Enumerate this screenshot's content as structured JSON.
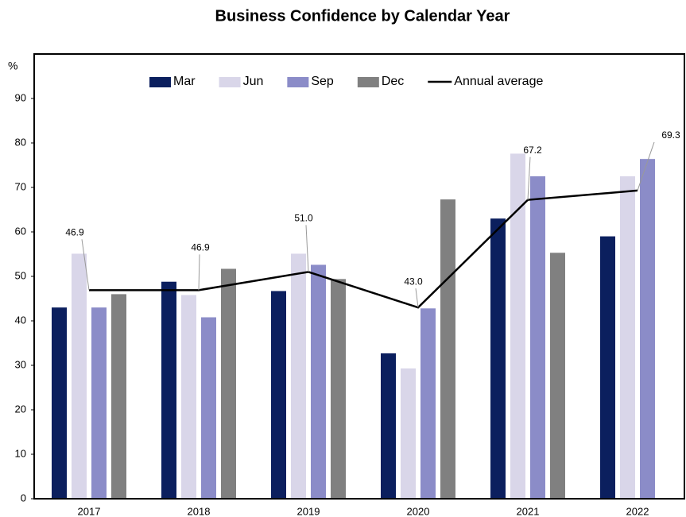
{
  "chart_data": {
    "type": "bar",
    "title": "Business Confidence by Calendar Year",
    "y_axis_label": "%",
    "categories": [
      "2017",
      "2018",
      "2019",
      "2020",
      "2021",
      "2022"
    ],
    "series": [
      {
        "name": "Mar",
        "color": "#0b1f5e",
        "values": [
          43.0,
          48.8,
          46.7,
          32.7,
          63.0,
          59.0
        ]
      },
      {
        "name": "Jun",
        "color": "#d9d6e9",
        "values": [
          55.1,
          45.8,
          55.1,
          29.3,
          77.6,
          72.5
        ]
      },
      {
        "name": "Sep",
        "color": "#8b8cc8",
        "values": [
          43.0,
          40.8,
          52.6,
          42.8,
          72.5,
          76.4
        ]
      },
      {
        "name": "Dec",
        "color": "#808080",
        "values": [
          46.0,
          51.7,
          49.4,
          67.3,
          55.3,
          null
        ]
      },
      {
        "name": "Annual average",
        "type": "line",
        "color": "#000000",
        "values": [
          46.9,
          46.9,
          51.0,
          43.0,
          67.2,
          69.3
        ],
        "value_labels": [
          "46.9",
          "46.9",
          "51.0",
          "43.0",
          "67.2",
          "69.3"
        ]
      }
    ],
    "ylim": [
      0,
      100
    ],
    "yticks": [
      0,
      10,
      20,
      30,
      40,
      50,
      60,
      70,
      80,
      90
    ],
    "legend": "top"
  }
}
